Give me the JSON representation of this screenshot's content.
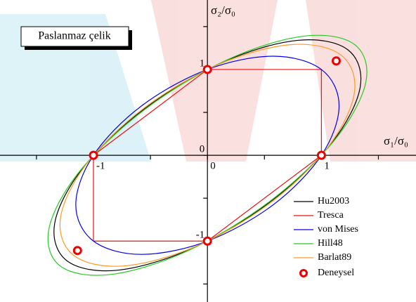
{
  "chart_data": {
    "type": "line",
    "title": "Paslanmaz çelik",
    "x_label": "σ₁/σ₀",
    "y_label": "σ₂/σ₀",
    "xlim": [
      -1.82,
      1.83
    ],
    "ylim": [
      -1.71,
      1.81
    ],
    "xticks": [
      -1,
      0,
      1
    ],
    "yticks": [
      -1,
      0,
      1
    ],
    "xminorticks": [
      -1.5,
      -0.5,
      0.5,
      1.5
    ],
    "yminorticks": [
      -1.5,
      -0.5,
      0.5,
      1.5
    ],
    "series": [
      {
        "name": "Hu2003",
        "color": "#000000",
        "closed": true,
        "smooth": true,
        "x": [
          1.231,
          0.792,
          0.142,
          -0.547,
          -1.089,
          -1.34,
          -1.231,
          -0.792,
          -0.142,
          0.547,
          1.089,
          1.34
        ],
        "y": [
          1.231,
          1.34,
          1.089,
          0.547,
          -0.142,
          -0.792,
          -1.231,
          -1.34,
          -1.089,
          -0.547,
          0.142,
          0.792
        ]
      },
      {
        "name": "Tresca",
        "color": "#ee1111",
        "closed": true,
        "smooth": false,
        "x": [
          1,
          1,
          0,
          -1,
          -1,
          0
        ],
        "y": [
          0,
          1,
          1,
          0,
          -1,
          -1
        ]
      },
      {
        "name": "von Mises",
        "color": "#0000ee",
        "closed": true,
        "smooth": true,
        "x": [
          1,
          0.577,
          0,
          -0.577,
          -1,
          -1.155,
          -1,
          -0.577,
          0,
          0.577,
          1,
          1.155
        ],
        "y": [
          1,
          1.155,
          1,
          0.577,
          0,
          -0.577,
          -1,
          -1.155,
          -1,
          -0.577,
          0,
          0.577
        ]
      },
      {
        "name": "Hill48",
        "color": "#22cc22",
        "closed": true,
        "smooth": true,
        "x": [
          1.291,
          0.847,
          0.176,
          -0.542,
          -1.115,
          -1.389,
          -1.291,
          -0.847,
          -0.176,
          0.542,
          1.115,
          1.389
        ],
        "y": [
          1.291,
          1.389,
          1.115,
          0.542,
          -0.176,
          -0.847,
          -1.291,
          -1.389,
          -1.115,
          -0.542,
          0.176,
          0.847
        ]
      },
      {
        "name": "Barlat89",
        "color": "#ff9922",
        "closed": true,
        "smooth": true,
        "x": [
          1.17,
          0.737,
          0.106,
          -0.553,
          -1.064,
          -1.29,
          -1.17,
          -0.737,
          -0.106,
          0.553,
          1.064,
          1.29
        ],
        "y": [
          1.17,
          1.29,
          1.064,
          0.553,
          -0.106,
          -0.737,
          -1.17,
          -1.29,
          -1.064,
          -0.553,
          0.106,
          0.737
        ]
      }
    ],
    "points": {
      "name": "Deneysel",
      "color": "#ee0000",
      "x": [
        1,
        0,
        -1,
        0,
        1.13,
        -1.14
      ],
      "y": [
        0,
        1,
        0,
        -1,
        1.1,
        -1.11
      ]
    }
  }
}
